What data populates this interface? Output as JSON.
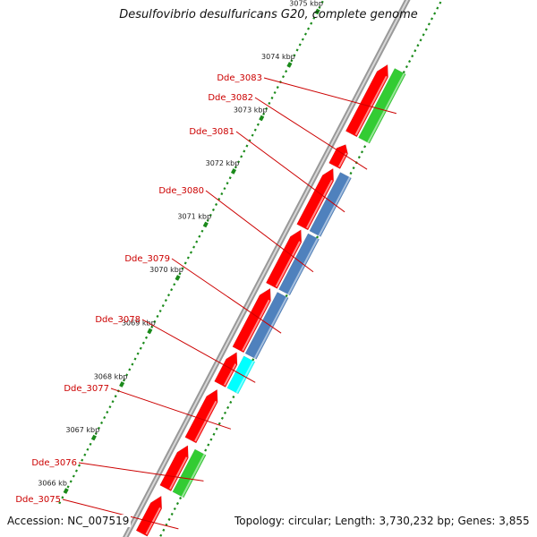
{
  "header": {
    "title": "Desulfovibrio desulfuricans G20, complete genome"
  },
  "footer": {
    "accession": "Accession: NC_007519",
    "summary": "Topology: circular; Length: 3,730,232 bp; Genes: 3,855"
  },
  "scale": {
    "unit": "kbp",
    "ticks": [
      {
        "kbp": 3066,
        "label": "3066 kb"
      },
      {
        "kbp": 3067,
        "label": "3067 kbp"
      },
      {
        "kbp": 3068,
        "label": "3068 kbp"
      },
      {
        "kbp": 3069,
        "label": "3069 kbp"
      },
      {
        "kbp": 3070,
        "label": "3070 kbp"
      },
      {
        "kbp": 3071,
        "label": "3071 kbp"
      },
      {
        "kbp": 3072,
        "label": "3072 kbp"
      },
      {
        "kbp": 3073,
        "label": "3073 kbp"
      },
      {
        "kbp": 3074,
        "label": "3074 kbp"
      },
      {
        "kbp": 3075,
        "label": "3075 kbp"
      }
    ]
  },
  "genes": [
    {
      "label": "Dde_3075",
      "start_kbp": 3066.0,
      "end_kbp": 3066.7
    },
    {
      "label": "Dde_3076",
      "start_kbp": 3066.85,
      "end_kbp": 3067.65
    },
    {
      "label": "Dde_3077",
      "start_kbp": 3067.75,
      "end_kbp": 3068.7
    },
    {
      "label": "Dde_3078",
      "start_kbp": 3068.8,
      "end_kbp": 3069.4
    },
    {
      "label": "Dde_3079",
      "start_kbp": 3069.45,
      "end_kbp": 3070.6
    },
    {
      "label": "Dde_3080",
      "start_kbp": 3070.65,
      "end_kbp": 3071.7
    },
    {
      "label": "Dde_3081",
      "start_kbp": 3071.75,
      "end_kbp": 3072.85
    },
    {
      "label": "Dde_3082",
      "start_kbp": 3072.9,
      "end_kbp": 3073.3
    },
    {
      "label": "Dde_3083",
      "start_kbp": 3073.5,
      "end_kbp": 3074.8
    }
  ],
  "colors": {
    "cds": "#ff0000",
    "cog_green": "#33cc33",
    "cog_blue": "#4f81bd",
    "cog_cyan": "#00ffff",
    "backbone": "#999999",
    "tick": "#1a8a1a",
    "gene_label": "#cc0000"
  }
}
